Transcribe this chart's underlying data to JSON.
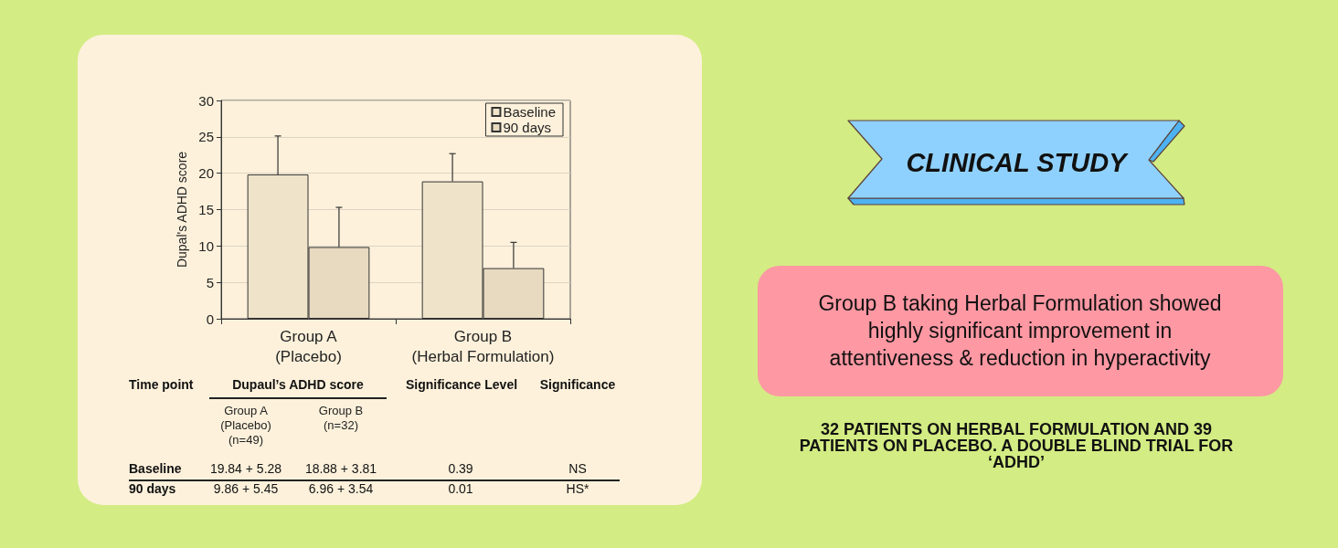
{
  "chart_data": {
    "type": "bar",
    "title": "CLINICAL STUDY",
    "ylabel": "Dupal's ADHD score",
    "categories": [
      "Group A\n(Placebo)",
      "Group B\n(Herbal Formulation)"
    ],
    "series": [
      {
        "name": "Baseline",
        "color": "#efe3c9",
        "values": [
          19.84,
          18.88
        ],
        "errors": [
          [
            19.84,
            25.12
          ],
          [
            18.88,
            22.69
          ]
        ]
      },
      {
        "name": "90 days",
        "color": "#e7dac0",
        "values": [
          9.86,
          6.96
        ],
        "errors": [
          [
            9.86,
            15.31
          ],
          [
            6.96,
            10.5
          ]
        ]
      }
    ],
    "ylim": [
      0,
      30
    ],
    "yticks": [
      0,
      5,
      10,
      15,
      20,
      25,
      30
    ],
    "grid": "y",
    "legend": "top right",
    "annotations": [
      "Time point",
      "Dupaul’s ADHD score",
      "Group A\n(Placebo)\n(n=49)",
      "Group B\n(n=32)",
      "Significance Level",
      "Significance",
      "19.84 + 5.28",
      "18.88 + 3.81",
      "0.39",
      "NS",
      "9.86 + 5.45",
      "6.96 + 3.54",
      "0.01",
      "HS*",
      "Group B taking Herbal Formulation showed highly significant improvement in attentiveness & reduction in hyperactivity",
      "32 PATIENTS ON HERBAL FORMULATION AND 39 PATIENTS ON PLACEBO. A DOUBLE BLIND TRIAL FOR ‘ADHD’"
    ]
  }
}
